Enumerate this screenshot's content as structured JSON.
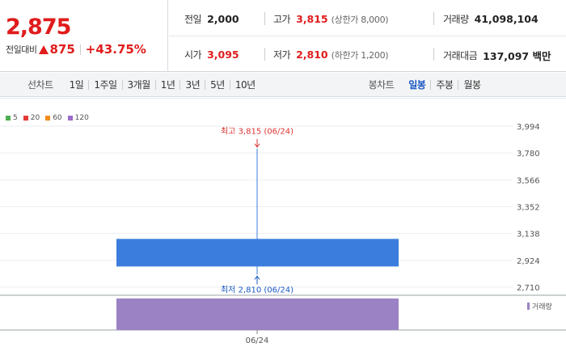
{
  "quote": {
    "price": "2,875",
    "change_label": "전일대비",
    "change_value": "875",
    "change_rate": "+43.75%",
    "prev_close": {
      "label": "전일",
      "value": "2,000"
    },
    "open": {
      "label": "시가",
      "value": "3,095"
    },
    "high": {
      "label": "고가",
      "value": "3,815",
      "note": "(상한가 8,000)"
    },
    "low": {
      "label": "저가",
      "value": "2,810",
      "note": "(하한가 1,200)"
    },
    "volume": {
      "label": "거래량",
      "value": "41,098,104"
    },
    "amount": {
      "label": "거래대금",
      "value": "137,097 백만"
    }
  },
  "toolbar": {
    "line_chart_label": "선차트",
    "line_periods": [
      "1일",
      "1주일",
      "3개월",
      "1년",
      "3년",
      "5년",
      "10년"
    ],
    "candle_chart_label": "봉차트",
    "candle_periods": [
      "일봉",
      "주봉",
      "월봉"
    ],
    "active_candle": "일봉"
  },
  "colors": {
    "up": "#e01c1c",
    "candle": "#3b7ddd",
    "wick": "#3b7ddd",
    "volume": "#9b82c4",
    "grid": "#eceef0"
  },
  "chart_data": {
    "type": "candlestick",
    "legend": [
      {
        "name": "5",
        "color": "#4caf50"
      },
      {
        "name": "20",
        "color": "#e53935"
      },
      {
        "name": "60",
        "color": "#f28c1c"
      },
      {
        "name": "120",
        "color": "#9c6bc9"
      }
    ],
    "x": [
      "06/24"
    ],
    "candles": [
      {
        "date": "06/24",
        "open": 3095,
        "high": 3815,
        "low": 2810,
        "close": 2875
      }
    ],
    "volume": [
      41098104
    ],
    "volume_label": "거래량",
    "y_ticks": [
      "3,994",
      "3,780",
      "3,566",
      "3,352",
      "3,138",
      "2,924",
      "2,710"
    ],
    "y_tick_values": [
      3994,
      3780,
      3566,
      3352,
      3138,
      2924,
      2710
    ],
    "ylim": [
      2710,
      3994
    ],
    "high_annotation": "최고 3,815 (06/24)",
    "low_annotation": "최저 2,810 (06/24)",
    "x_tick_labels": [
      "06/24"
    ],
    "grid": true
  }
}
